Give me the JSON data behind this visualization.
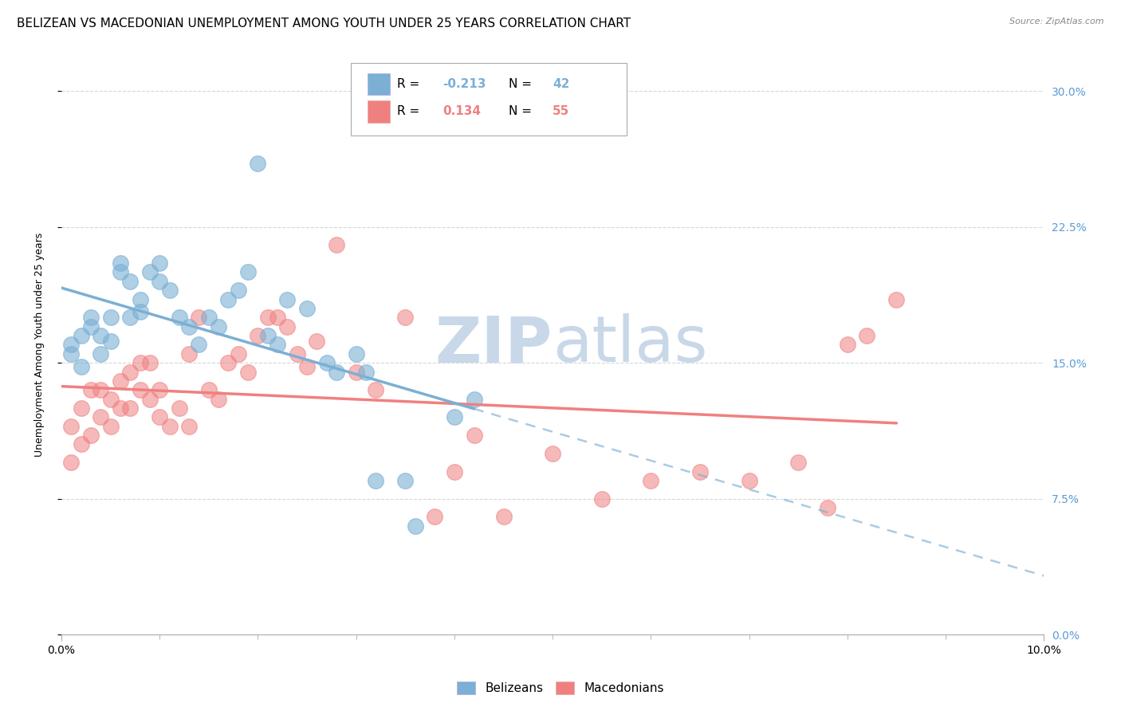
{
  "title": "BELIZEAN VS MACEDONIAN UNEMPLOYMENT AMONG YOUTH UNDER 25 YEARS CORRELATION CHART",
  "source": "Source: ZipAtlas.com",
  "ylabel": "Unemployment Among Youth under 25 years",
  "xlim": [
    0.0,
    0.1
  ],
  "ylim": [
    0.0,
    0.32
  ],
  "belizean_color": "#7bafd4",
  "macedonian_color": "#f08080",
  "belizean_R": -0.213,
  "belizean_N": 42,
  "macedonian_R": 0.134,
  "macedonian_N": 55,
  "legend_label_1": "Belizeans",
  "legend_label_2": "Macedonians",
  "belizean_x": [
    0.001,
    0.001,
    0.002,
    0.002,
    0.003,
    0.003,
    0.004,
    0.004,
    0.005,
    0.005,
    0.006,
    0.006,
    0.007,
    0.007,
    0.008,
    0.008,
    0.009,
    0.01,
    0.01,
    0.011,
    0.012,
    0.013,
    0.014,
    0.015,
    0.016,
    0.017,
    0.018,
    0.019,
    0.02,
    0.021,
    0.022,
    0.023,
    0.025,
    0.027,
    0.028,
    0.03,
    0.031,
    0.032,
    0.035,
    0.036,
    0.04,
    0.042
  ],
  "belizean_y": [
    0.155,
    0.16,
    0.148,
    0.165,
    0.17,
    0.175,
    0.155,
    0.165,
    0.175,
    0.162,
    0.2,
    0.205,
    0.195,
    0.175,
    0.185,
    0.178,
    0.2,
    0.205,
    0.195,
    0.19,
    0.175,
    0.17,
    0.16,
    0.175,
    0.17,
    0.185,
    0.19,
    0.2,
    0.26,
    0.165,
    0.16,
    0.185,
    0.18,
    0.15,
    0.145,
    0.155,
    0.145,
    0.085,
    0.085,
    0.06,
    0.12,
    0.13
  ],
  "macedonian_x": [
    0.001,
    0.001,
    0.002,
    0.002,
    0.003,
    0.003,
    0.004,
    0.004,
    0.005,
    0.005,
    0.006,
    0.006,
    0.007,
    0.007,
    0.008,
    0.008,
    0.009,
    0.009,
    0.01,
    0.01,
    0.011,
    0.012,
    0.013,
    0.013,
    0.014,
    0.015,
    0.016,
    0.017,
    0.018,
    0.019,
    0.02,
    0.021,
    0.022,
    0.023,
    0.024,
    0.025,
    0.026,
    0.028,
    0.03,
    0.032,
    0.035,
    0.038,
    0.04,
    0.042,
    0.045,
    0.05,
    0.055,
    0.06,
    0.065,
    0.07,
    0.075,
    0.078,
    0.08,
    0.082,
    0.085
  ],
  "macedonian_y": [
    0.095,
    0.115,
    0.105,
    0.125,
    0.11,
    0.135,
    0.12,
    0.135,
    0.115,
    0.13,
    0.125,
    0.14,
    0.125,
    0.145,
    0.135,
    0.15,
    0.13,
    0.15,
    0.12,
    0.135,
    0.115,
    0.125,
    0.115,
    0.155,
    0.175,
    0.135,
    0.13,
    0.15,
    0.155,
    0.145,
    0.165,
    0.175,
    0.175,
    0.17,
    0.155,
    0.148,
    0.162,
    0.215,
    0.145,
    0.135,
    0.175,
    0.065,
    0.09,
    0.11,
    0.065,
    0.1,
    0.075,
    0.085,
    0.09,
    0.085,
    0.095,
    0.07,
    0.16,
    0.165,
    0.185
  ],
  "background_color": "#ffffff",
  "grid_color": "#cccccc",
  "watermark_zip": "ZIP",
  "watermark_atlas": "atlas",
  "watermark_color_zip": "#c8d8e8",
  "watermark_color_atlas": "#c8d8e8",
  "title_fontsize": 11,
  "axis_label_fontsize": 9,
  "tick_fontsize": 10,
  "right_tick_color": "#5b9bd5",
  "ytick_vals": [
    0.0,
    0.075,
    0.15,
    0.225,
    0.3
  ],
  "ytick_labels": [
    "0.0%",
    "7.5%",
    "15.0%",
    "22.5%",
    "30.0%"
  ]
}
